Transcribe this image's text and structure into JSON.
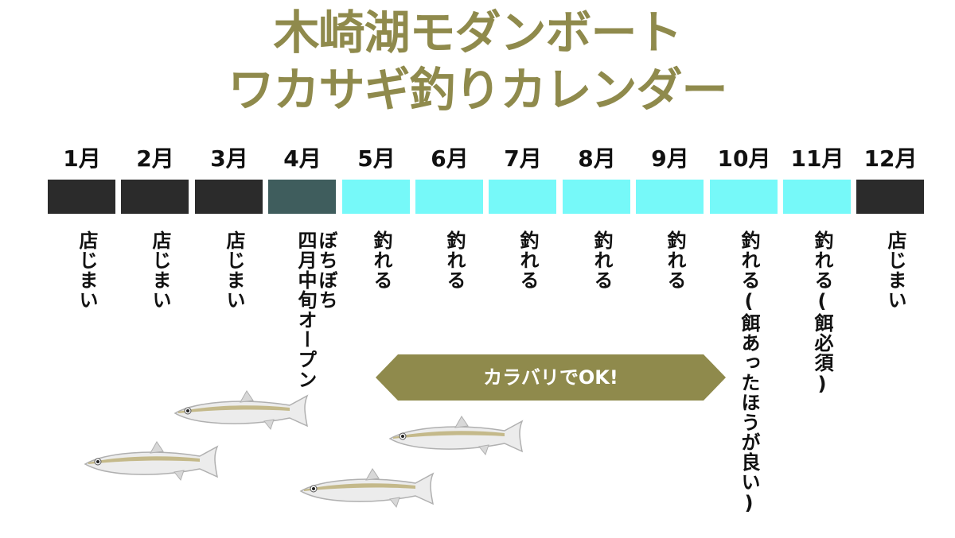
{
  "title": {
    "line1": "木崎湖モダンボート",
    "line2": "ワカサギ釣りカレンダー"
  },
  "months": [
    {
      "label": "1月",
      "status": "closed",
      "note": "店じまい"
    },
    {
      "label": "2月",
      "status": "closed",
      "note": "店じまい"
    },
    {
      "label": "3月",
      "status": "closed",
      "note": "店じまい"
    },
    {
      "label": "4月",
      "status": "partial",
      "note": "ぼちぼち",
      "note2": "四月中旬オープン"
    },
    {
      "label": "5月",
      "status": "open",
      "note": "釣れる"
    },
    {
      "label": "6月",
      "status": "open",
      "note": "釣れる"
    },
    {
      "label": "7月",
      "status": "open",
      "note": "釣れる"
    },
    {
      "label": "8月",
      "status": "open",
      "note": "釣れる"
    },
    {
      "label": "9月",
      "status": "open",
      "note": "釣れる"
    },
    {
      "label": "10月",
      "status": "open",
      "note": "釣れる(餌あったほうが良い)"
    },
    {
      "label": "11月",
      "status": "open",
      "note": "釣れる(餌必須)"
    },
    {
      "label": "12月",
      "status": "closed",
      "note": "店じまい"
    }
  ],
  "banner": {
    "label": "カラバリでOK!"
  },
  "colors": {
    "title": "#8f8a4c",
    "closed": "#2b2b2b",
    "partial": "#3f5d5d",
    "open": "#76f9f9",
    "banner": "#8f8a4c"
  }
}
